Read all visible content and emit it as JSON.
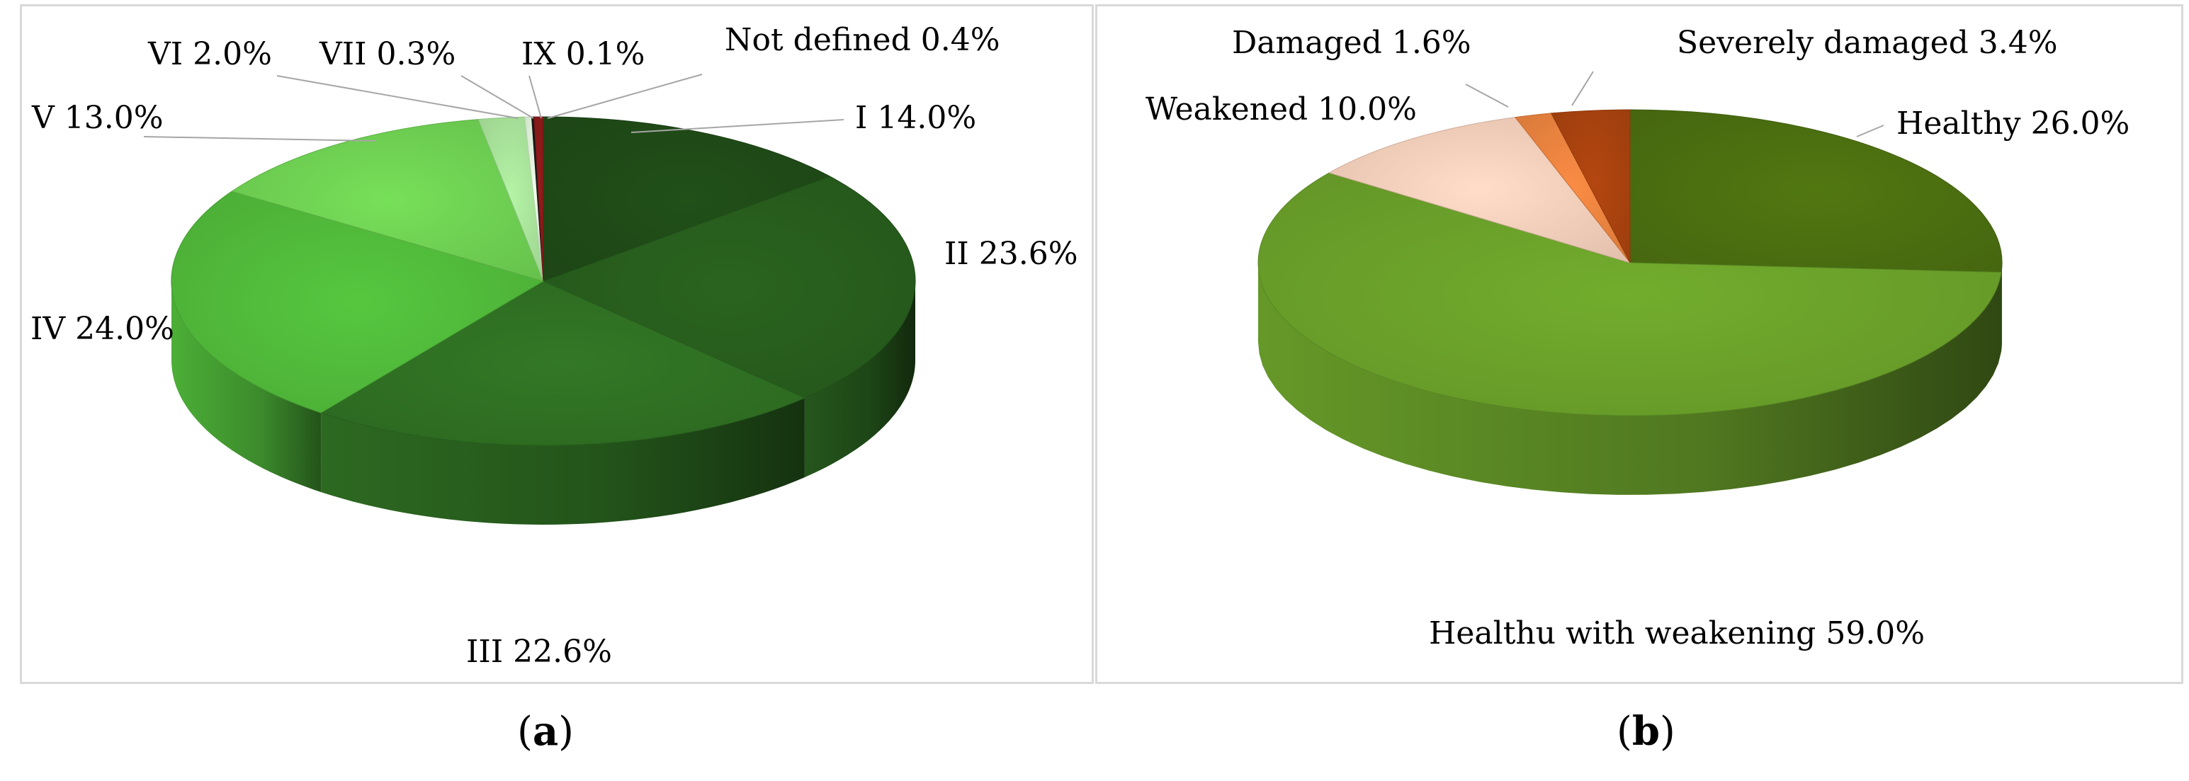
{
  "chart_data": [
    {
      "type": "pie",
      "panel": "(a)",
      "slices": [
        {
          "label": "I 14.0%",
          "value": 14.0,
          "color": "#1f4a17"
        },
        {
          "label": "II 23.6%",
          "value": 23.6,
          "color": "#275c1d"
        },
        {
          "label": "III 22.6%",
          "value": 22.6,
          "color": "#2f6f23"
        },
        {
          "label": "IV 24.0%",
          "value": 24.0,
          "color": "#50b83a"
        },
        {
          "label": "V 13.0%",
          "value": 13.0,
          "color": "#6ecf52"
        },
        {
          "label": "VI 2.0%",
          "value": 2.0,
          "color": "#a8e29a"
        },
        {
          "label": "VII 0.3%",
          "value": 0.3,
          "color": "#e0f4da"
        },
        {
          "label": "IX 0.1%",
          "value": 0.1,
          "color": "#1a1a1a"
        },
        {
          "label": "Not defined 0.4%",
          "value": 0.4,
          "color": "#8b1a1a"
        }
      ]
    },
    {
      "type": "pie",
      "panel": "(b)",
      "slices": [
        {
          "label": "Healthy 26.0%",
          "value": 26.0,
          "color": "#4b6e10"
        },
        {
          "label": "Healthu with weakening 59.0%",
          "value": 59.0,
          "color": "#6aa02a"
        },
        {
          "label": "Weakened 10.0%",
          "value": 10.0,
          "color": "#f3cdb9"
        },
        {
          "label": "Damaged 1.6%",
          "value": 1.6,
          "color": "#e8823f"
        },
        {
          "label": "Severely damaged 3.4%",
          "value": 3.4,
          "color": "#a8420f"
        }
      ]
    }
  ],
  "captions": {
    "a_open": "(",
    "a_letter": "a",
    "a_close": ")",
    "b_open": "(",
    "b_letter": "b",
    "b_close": ")"
  }
}
